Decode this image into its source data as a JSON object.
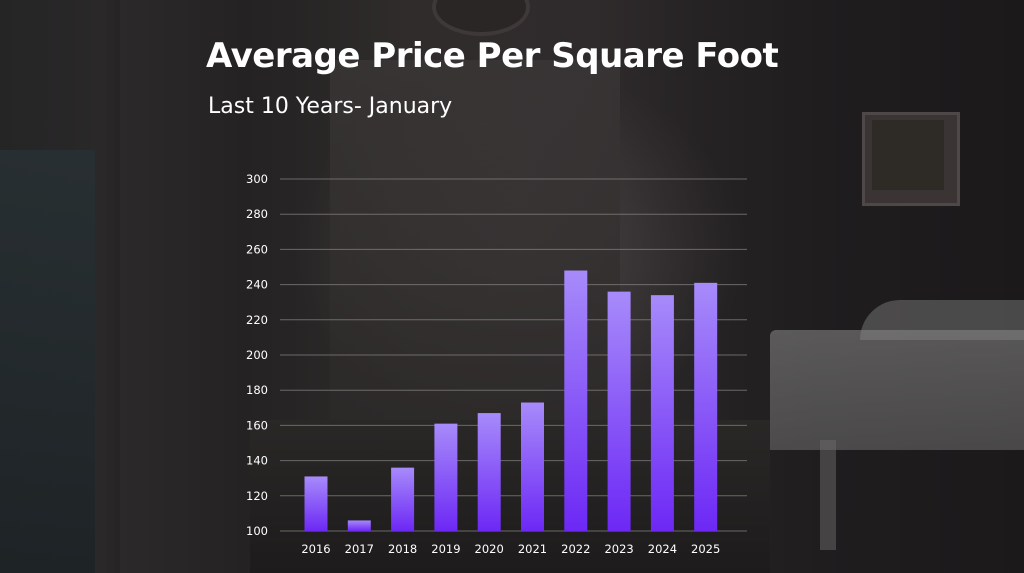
{
  "title": "Average Price Per Square Foot",
  "subtitle": "Last 10 Years- January",
  "colors": {
    "bar_top": "#a78bfa",
    "bar_bottom": "#6d28f5",
    "grid": "#8a8686",
    "text": "#ffffff"
  },
  "chart_data": {
    "type": "bar",
    "title": "Average Price Per Square Foot",
    "subtitle": "Last 10 Years- January",
    "categories": [
      "2016",
      "2017",
      "2018",
      "2019",
      "2020",
      "2021",
      "2022",
      "2023",
      "2024",
      "2025"
    ],
    "values": [
      131,
      106,
      136,
      161,
      167,
      173,
      248,
      236,
      234,
      241
    ],
    "ylim": [
      100,
      300
    ],
    "yticks": [
      100,
      120,
      140,
      160,
      180,
      200,
      220,
      240,
      260,
      280,
      300
    ],
    "xlabel": "",
    "ylabel": "",
    "grid": true,
    "legend": false
  }
}
